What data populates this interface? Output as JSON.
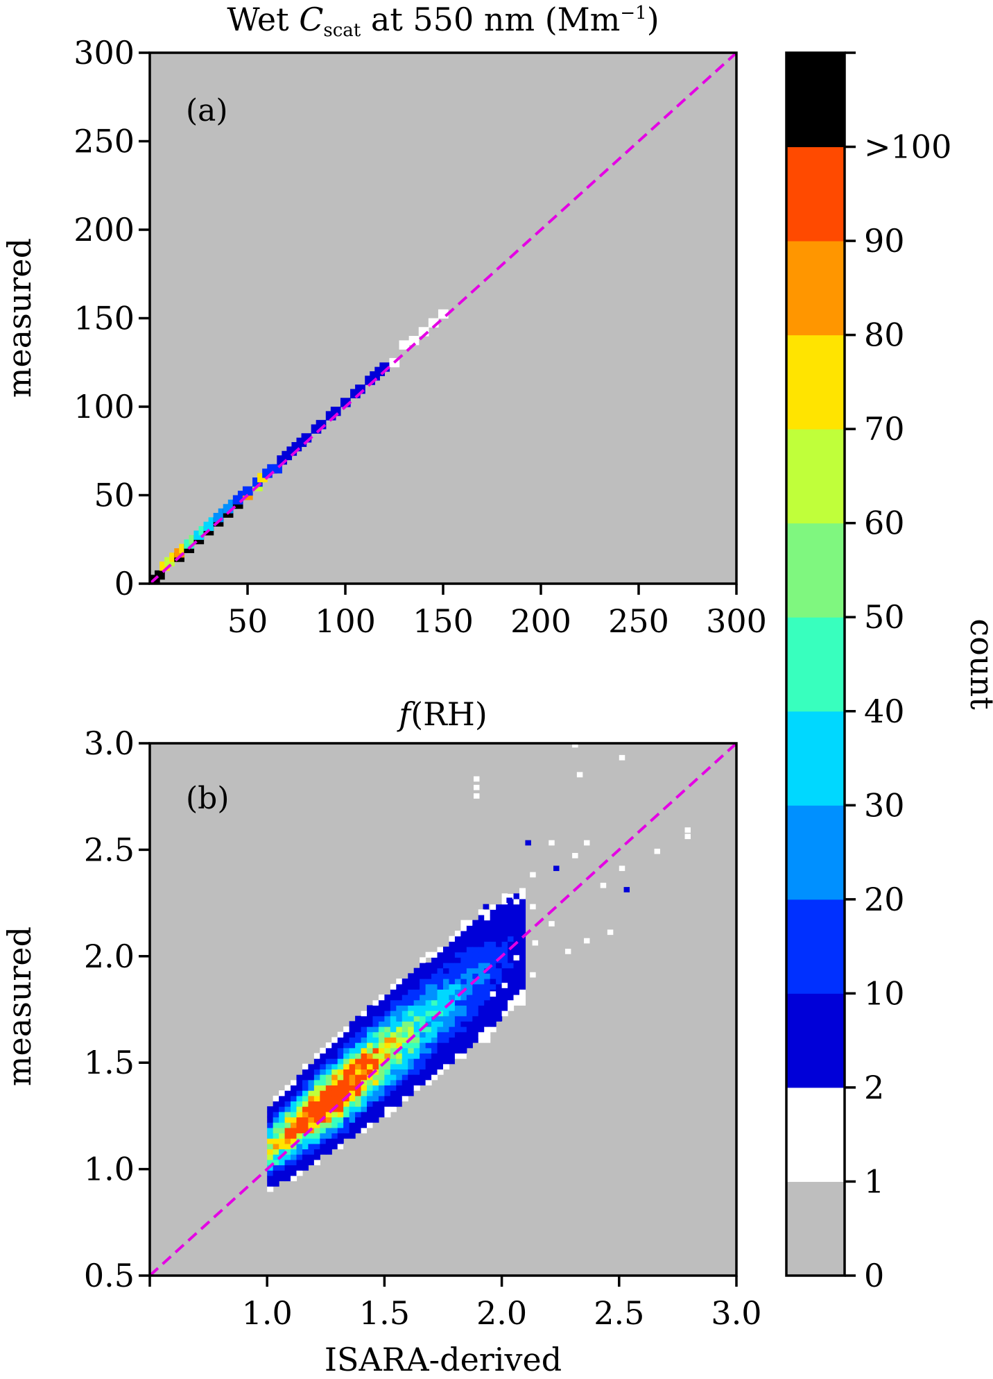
{
  "chart_data": [
    {
      "type": "heatmap",
      "panel_label": "(a)",
      "title": {
        "prefix": "Wet ",
        "symbol": "C",
        "subscript": "scat",
        "suffix": " at 550 nm (Mm",
        "superscript": "−1",
        "close": ")"
      },
      "xlabel": "",
      "ylabel": "measured",
      "xlim": [
        0,
        300
      ],
      "ylim": [
        0,
        300
      ],
      "xticks": [
        50,
        100,
        150,
        200,
        250,
        300
      ],
      "yticks": [
        0,
        50,
        100,
        150,
        200,
        250,
        300
      ],
      "bin_size": 5,
      "one_to_one_line": true,
      "cells": [
        [
          2.5,
          2.5,
          100
        ],
        [
          5,
          5,
          100
        ],
        [
          7.5,
          10,
          70
        ],
        [
          10,
          12.5,
          60
        ],
        [
          12.5,
          15,
          75
        ],
        [
          15,
          15,
          100
        ],
        [
          15,
          17.5,
          80
        ],
        [
          17.5,
          20,
          75
        ],
        [
          20,
          20,
          100
        ],
        [
          20,
          22.5,
          45
        ],
        [
          22.5,
          25,
          50
        ],
        [
          25,
          25,
          100
        ],
        [
          25,
          27.5,
          35
        ],
        [
          27.5,
          30,
          40
        ],
        [
          30,
          30,
          100
        ],
        [
          30,
          32.5,
          30
        ],
        [
          32.5,
          35,
          35
        ],
        [
          35,
          35,
          100
        ],
        [
          35,
          37.5,
          25
        ],
        [
          37.5,
          40,
          25
        ],
        [
          40,
          40,
          100
        ],
        [
          40,
          42.5,
          20
        ],
        [
          42.5,
          45,
          20
        ],
        [
          45,
          45,
          100
        ],
        [
          45,
          47.5,
          15
        ],
        [
          47.5,
          50,
          15
        ],
        [
          50,
          50,
          80
        ],
        [
          50,
          52.5,
          12
        ],
        [
          55,
          55,
          60
        ],
        [
          55,
          57.5,
          12
        ],
        [
          57.5,
          60,
          75
        ],
        [
          60,
          62.5,
          10
        ],
        [
          62.5,
          65,
          15
        ],
        [
          65,
          65,
          10
        ],
        [
          67.5,
          70,
          8
        ],
        [
          70,
          72.5,
          8
        ],
        [
          72.5,
          75,
          6
        ],
        [
          75,
          77.5,
          6
        ],
        [
          77.5,
          80,
          5
        ],
        [
          80,
          82.5,
          5
        ],
        [
          85,
          87.5,
          4
        ],
        [
          87.5,
          90,
          5
        ],
        [
          92.5,
          95,
          4
        ],
        [
          95,
          97.5,
          4
        ],
        [
          100,
          102.5,
          3
        ],
        [
          105,
          107.5,
          3
        ],
        [
          107.5,
          110,
          4
        ],
        [
          112.5,
          115,
          3
        ],
        [
          115,
          117.5,
          3
        ],
        [
          117.5,
          120,
          4
        ],
        [
          120,
          122.5,
          3
        ],
        [
          125,
          125,
          1
        ],
        [
          130,
          135,
          1
        ],
        [
          135,
          137.5,
          1
        ],
        [
          140,
          142.5,
          1
        ],
        [
          145,
          147.5,
          1
        ],
        [
          150,
          152.5,
          1
        ]
      ]
    },
    {
      "type": "heatmap",
      "panel_label": "(b)",
      "title": {
        "symbol": "f",
        "rest": "(RH)"
      },
      "xlabel": "ISARA-derived",
      "ylabel": "measured",
      "xlim": [
        0.5,
        3.0
      ],
      "ylim": [
        0.5,
        3.0
      ],
      "xticks": [
        "1.0",
        "1.5",
        "2.0",
        "2.5",
        "3.0"
      ],
      "yticks": [
        "0.5",
        "1.0",
        "1.5",
        "2.0",
        "2.5",
        "3.0"
      ],
      "one_to_one_line": true,
      "core_centers": [
        [
          1.1,
          1.19
        ],
        [
          1.2,
          1.26
        ],
        [
          1.3,
          1.33
        ],
        [
          1.4,
          1.4
        ]
      ],
      "scattered_white_bins": [
        [
          2.3,
          2.98
        ],
        [
          2.5,
          2.92
        ],
        [
          2.32,
          2.84
        ],
        [
          1.88,
          2.82
        ],
        [
          1.88,
          2.78
        ],
        [
          1.88,
          2.74
        ],
        [
          2.35,
          2.52
        ],
        [
          2.78,
          2.58
        ],
        [
          2.78,
          2.55
        ],
        [
          2.2,
          2.52
        ],
        [
          2.3,
          2.46
        ],
        [
          2.65,
          2.48
        ],
        [
          2.5,
          2.4
        ],
        [
          2.12,
          2.37
        ],
        [
          2.42,
          2.32
        ],
        [
          2.0,
          2.27
        ],
        [
          2.12,
          2.22
        ],
        [
          2.2,
          2.14
        ],
        [
          2.45,
          2.1
        ],
        [
          2.35,
          2.06
        ],
        [
          2.27,
          2.01
        ],
        [
          2.13,
          2.05
        ],
        [
          2.05,
          1.98
        ],
        [
          2.12,
          1.9
        ],
        [
          2.0,
          1.85
        ],
        [
          1.95,
          1.81
        ]
      ],
      "scattered_blue_bins": [
        [
          2.1,
          2.52
        ],
        [
          2.22,
          2.4
        ],
        [
          2.52,
          2.3
        ],
        [
          2.02,
          2.25
        ],
        [
          1.92,
          2.22
        ]
      ]
    },
    {
      "type": "colorbar",
      "label": "count",
      "tick_labels": [
        "0",
        "1",
        "2",
        "10",
        "20",
        "30",
        "40",
        "50",
        "60",
        "70",
        "80",
        "90",
        ">100"
      ],
      "bins": [
        {
          "range": "0–1",
          "color": "#bebebe"
        },
        {
          "range": "1–2",
          "color": "#ffffff"
        },
        {
          "range": "2–10",
          "color": "#0000d8"
        },
        {
          "range": "10–20",
          "color": "#0030ff"
        },
        {
          "range": "20–30",
          "color": "#0090ff"
        },
        {
          "range": "30–40",
          "color": "#00d8ff"
        },
        {
          "range": "40–50",
          "color": "#38ffbe"
        },
        {
          "range": "50–60",
          "color": "#7ff77f"
        },
        {
          "range": "60–70",
          "color": "#c0ff3a"
        },
        {
          "range": "70–80",
          "color": "#ffe400"
        },
        {
          "range": "80–90",
          "color": "#ff9600"
        },
        {
          "range": "90–100",
          "color": "#ff4a00"
        },
        {
          "range": ">100",
          "color": "#000000"
        }
      ]
    }
  ],
  "colors": {
    "background": "#bebebe",
    "one_to_one": "#e400e4"
  }
}
